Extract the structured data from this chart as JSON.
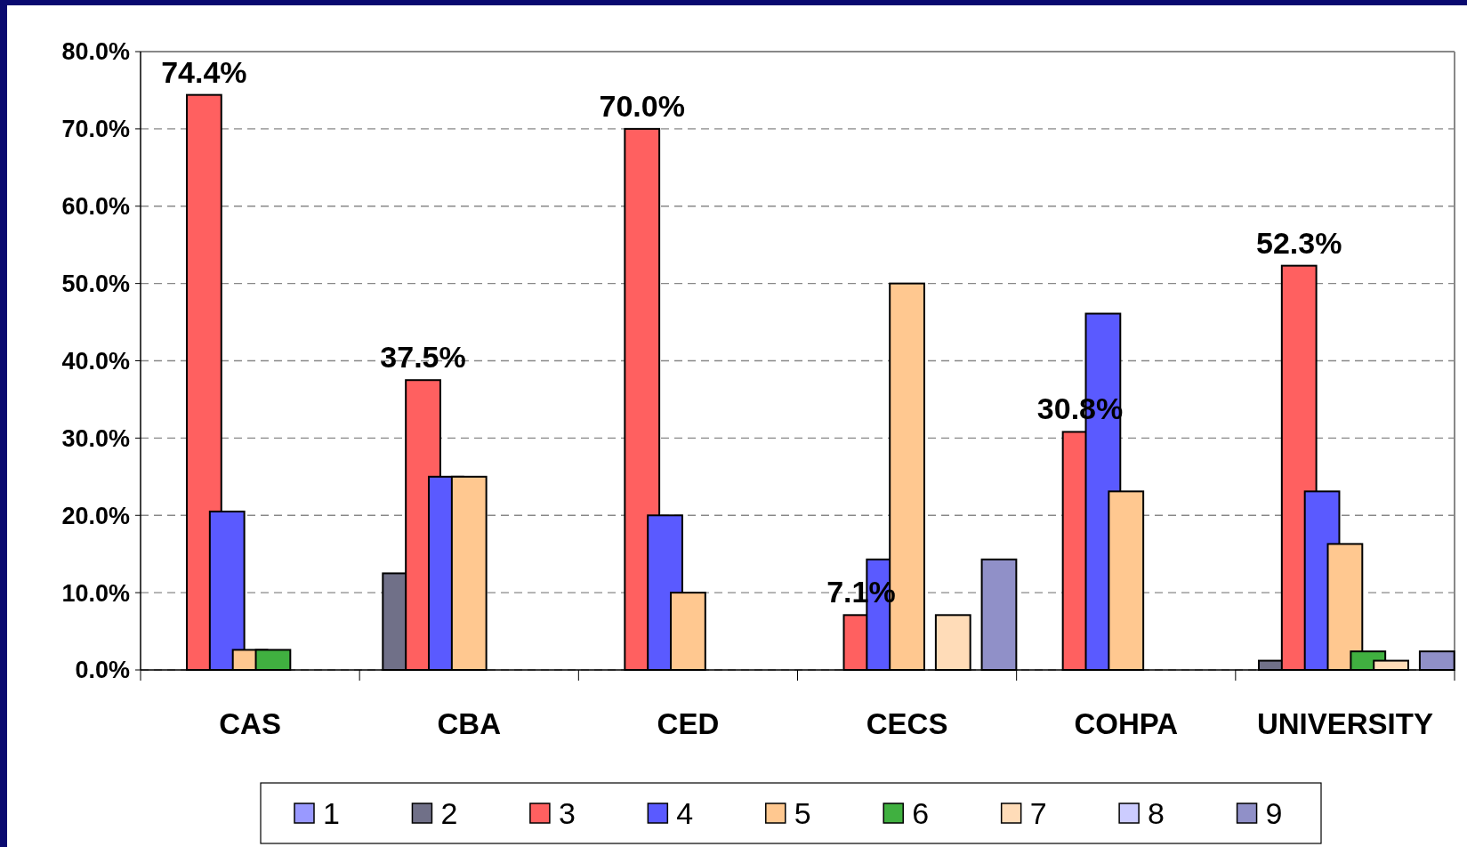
{
  "chart_data": {
    "type": "bar",
    "categories": [
      "CAS",
      "CBA",
      "CED",
      "CECS",
      "COHPA",
      "UNIVERSITY"
    ],
    "series": [
      {
        "name": "1",
        "color": "#9999ff",
        "values": [
          null,
          null,
          null,
          null,
          null,
          null
        ]
      },
      {
        "name": "2",
        "color": "#707088",
        "values": [
          null,
          12.5,
          null,
          null,
          null,
          1.2
        ]
      },
      {
        "name": "3",
        "color": "#ff6060",
        "values": [
          74.4,
          37.5,
          70.0,
          7.1,
          30.8,
          52.3
        ],
        "value_labels": [
          "74.4%",
          "37.5%",
          "70.0%",
          "7.1%",
          "30.8%",
          "52.3%"
        ]
      },
      {
        "name": "4",
        "color": "#5a5aff",
        "values": [
          20.5,
          25.0,
          20.0,
          14.3,
          46.1,
          23.1
        ]
      },
      {
        "name": "5",
        "color": "#ffc890",
        "values": [
          2.6,
          25.0,
          10.0,
          50.0,
          23.1,
          16.3
        ]
      },
      {
        "name": "6",
        "color": "#40b040",
        "values": [
          2.6,
          null,
          null,
          null,
          null,
          2.4
        ]
      },
      {
        "name": "7",
        "color": "#ffdcb8",
        "values": [
          null,
          null,
          null,
          7.1,
          null,
          1.2
        ]
      },
      {
        "name": "8",
        "color": "#ccccff",
        "values": [
          null,
          null,
          null,
          null,
          null,
          null
        ]
      },
      {
        "name": "9",
        "color": "#9090c8",
        "values": [
          null,
          null,
          null,
          14.3,
          null,
          2.4
        ]
      }
    ],
    "ylim": [
      0,
      80
    ],
    "yticks": [
      {
        "value": 0,
        "label": "0.0%"
      },
      {
        "value": 10,
        "label": "10.0%"
      },
      {
        "value": 20,
        "label": "20.0%"
      },
      {
        "value": 30,
        "label": "30.0%"
      },
      {
        "value": 40,
        "label": "40.0%"
      },
      {
        "value": 50,
        "label": "50.0%"
      },
      {
        "value": 60,
        "label": "60.0%"
      },
      {
        "value": 70,
        "label": "70.0%"
      },
      {
        "value": 80,
        "label": "80.0%"
      }
    ],
    "grid": "y",
    "legend": "bottom"
  }
}
